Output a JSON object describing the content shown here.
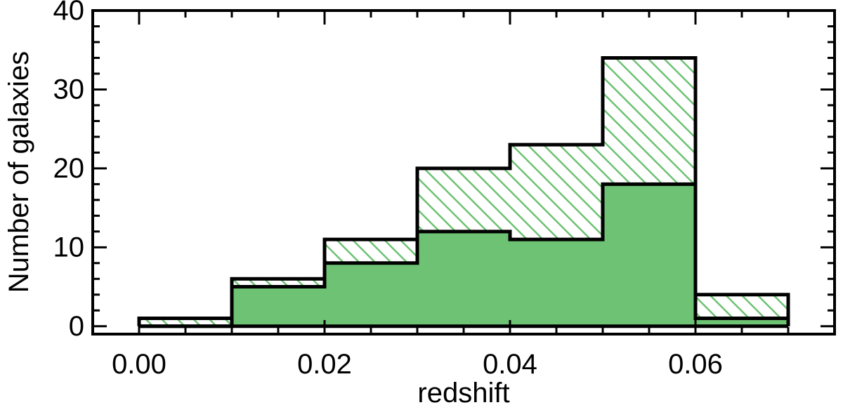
{
  "chart_data": {
    "type": "bar",
    "subtype": "stacked-histogram",
    "title": "",
    "xlabel": "redshift",
    "ylabel": "Number of galaxies",
    "xlim": [
      -0.005,
      0.075
    ],
    "ylim": [
      -1,
      40
    ],
    "x_ticks": [
      "0.00",
      "0.02",
      "0.04",
      "0.06"
    ],
    "x_tick_values": [
      0.0,
      0.02,
      0.04,
      0.06
    ],
    "y_ticks": [
      "0",
      "10",
      "20",
      "30",
      "40"
    ],
    "y_tick_values": [
      0,
      10,
      20,
      30,
      40
    ],
    "bin_edges": [
      0.0,
      0.01,
      0.02,
      0.03,
      0.04,
      0.05,
      0.06,
      0.07
    ],
    "series": [
      {
        "style": "solid-fill",
        "color": "#6dc273",
        "values": [
          0,
          5,
          8,
          12,
          11,
          18,
          1
        ]
      },
      {
        "style": "hatched",
        "color": "#6dc273",
        "values": [
          1,
          6,
          11,
          20,
          23,
          34,
          4
        ]
      }
    ],
    "grid": false,
    "legend": "none"
  }
}
